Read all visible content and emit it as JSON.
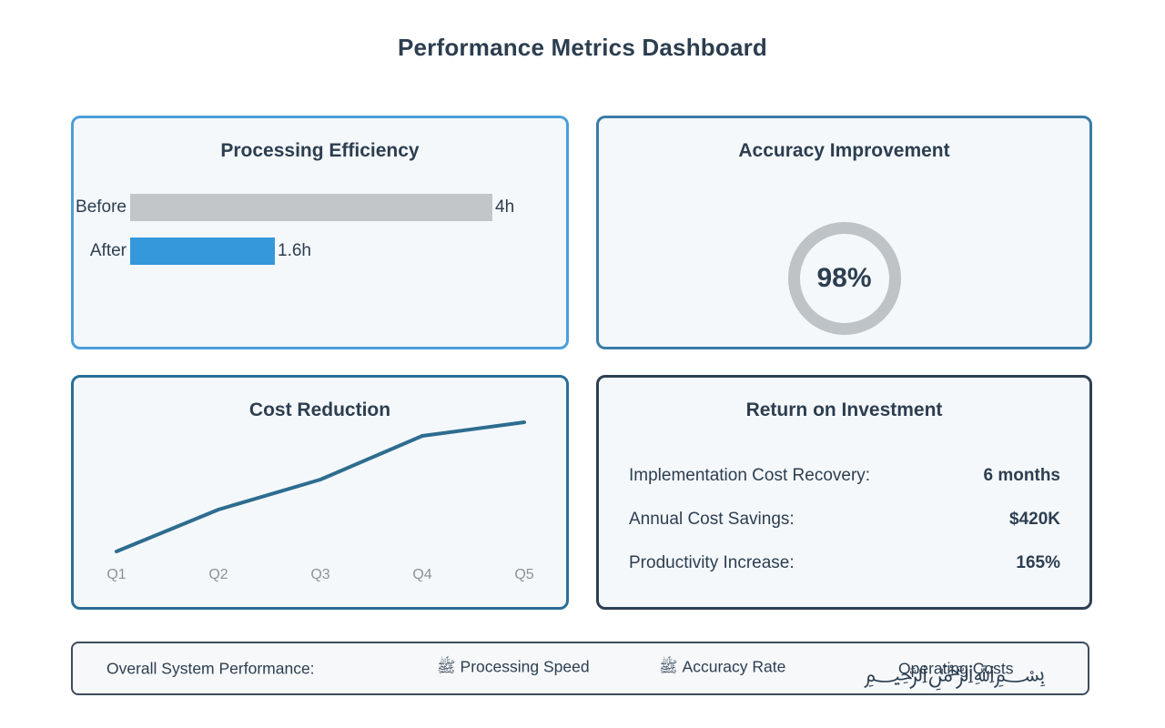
{
  "page": {
    "title": "Performance Metrics Dashboard"
  },
  "chart_data": [
    {
      "type": "bar",
      "orientation": "horizontal",
      "title": "Processing Efficiency",
      "categories": [
        "Before",
        "After"
      ],
      "values": [
        4,
        1.6
      ],
      "max": 4,
      "unit": "hours",
      "data_labels": [
        "4h",
        "1.6h"
      ],
      "bar_colors": [
        "#c3c6c9",
        "#3498db"
      ],
      "grid": false,
      "axes_visible": false
    },
    {
      "type": "pie",
      "subtype": "donut-gauge",
      "title": "Accuracy Improvement",
      "categories": [
        "Accuracy"
      ],
      "values": [
        98
      ],
      "center_label": "98%",
      "ring_color": "#bdc3c7"
    },
    {
      "type": "line",
      "title": "Cost Reduction",
      "categories": [
        "Q1",
        "Q2",
        "Q3",
        "Q4",
        "Q5"
      ],
      "values": [
        5,
        35,
        57,
        88,
        98
      ],
      "ylim": [
        0,
        100
      ],
      "xlabel": "",
      "ylabel": "",
      "line_color": "#2d6d90",
      "grid": false,
      "y_axis_labels_visible": false
    },
    {
      "type": "table",
      "title": "Return on Investment",
      "rows": [
        {
          "label": "Implementation Cost Recovery:",
          "value": "6 months"
        },
        {
          "label": "Annual Cost Savings:",
          "value": "$420K"
        },
        {
          "label": "Productivity Increase:",
          "value": "165%"
        }
      ]
    }
  ],
  "footer": {
    "label": "Overall System Performance:",
    "items": [
      {
        "icon": "ﷺ",
        "label": "Processing Speed"
      },
      {
        "icon": "ﷺ",
        "label": "Accuracy Rate"
      },
      {
        "icon": "﷽",
        "label": "Operating Costs"
      }
    ]
  },
  "colors": {
    "text": "#2c3e50",
    "card_background": "#f5f8fb",
    "border_efficiency": "#4aa0d8",
    "border_accuracy": "#3a7ca5",
    "border_cost": "#2a6f97",
    "border_roi": "#2e3f53",
    "border_footer": "#3d4c5c",
    "bar_gray": "#c3c6c9",
    "bar_blue": "#3498db",
    "ring_gray": "#bdc3c7",
    "line_teal": "#2d6d90",
    "axis_label_gray": "#8b9299"
  }
}
